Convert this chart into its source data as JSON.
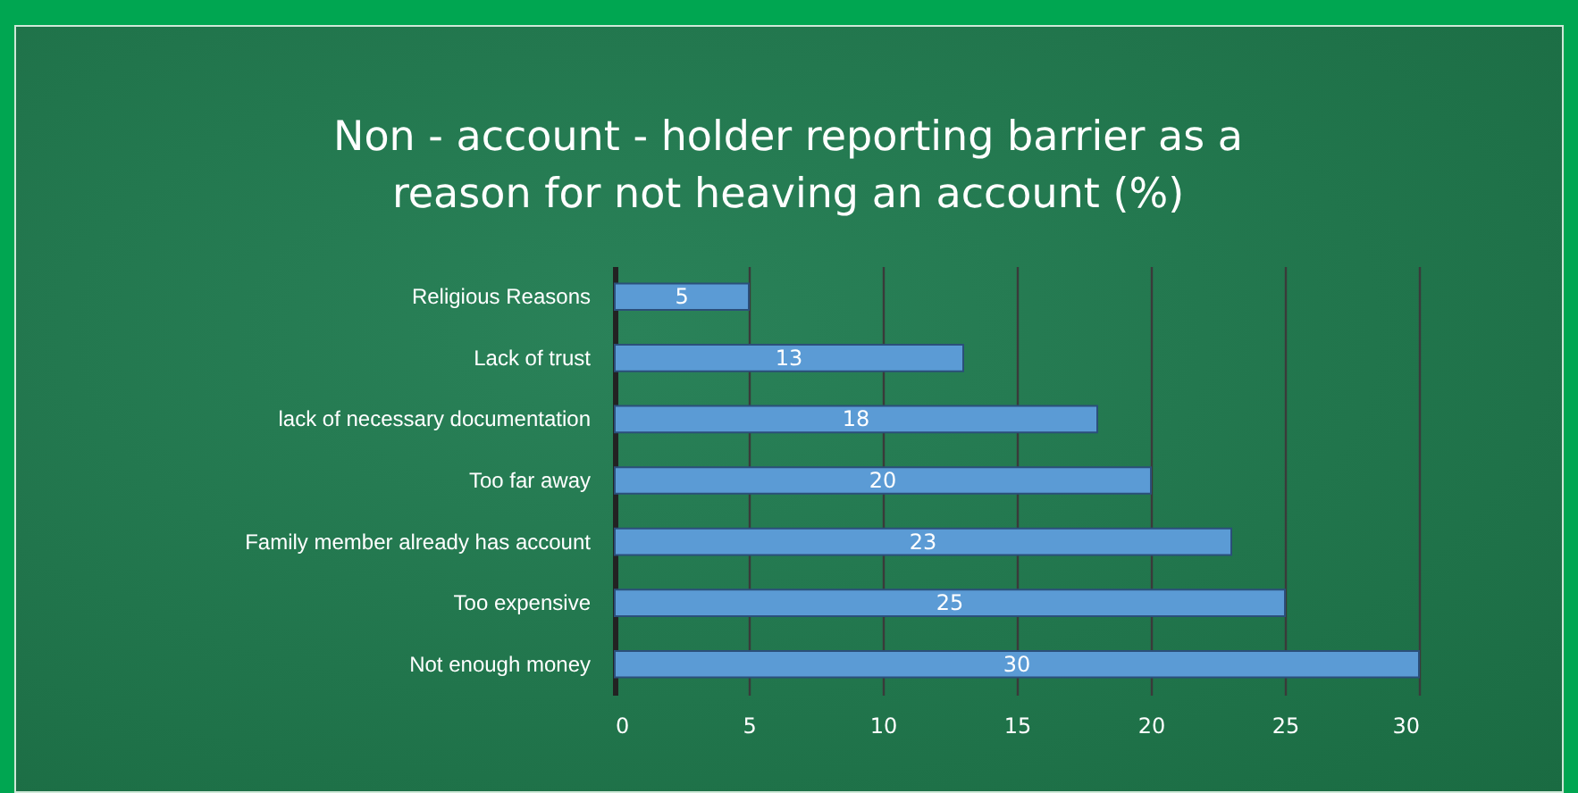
{
  "chart_data": {
    "type": "bar",
    "orientation": "horizontal",
    "title": [
      "Non - account - holder reporting barrier as a",
      "reason for not heaving an account (%)"
    ],
    "categories": [
      "Religious Reasons",
      "Lack of trust",
      "lack of necessary documentation",
      "Too far away",
      "Family member already has account",
      "Too expensive",
      "Not enough money"
    ],
    "values": [
      5,
      13,
      18,
      20,
      23,
      25,
      30
    ],
    "color": "#5b9bd5",
    "xlim": [
      0,
      30
    ],
    "xticks": [
      0,
      5,
      10,
      15,
      20,
      25,
      30
    ],
    "grid": "x",
    "data_labels": true
  }
}
